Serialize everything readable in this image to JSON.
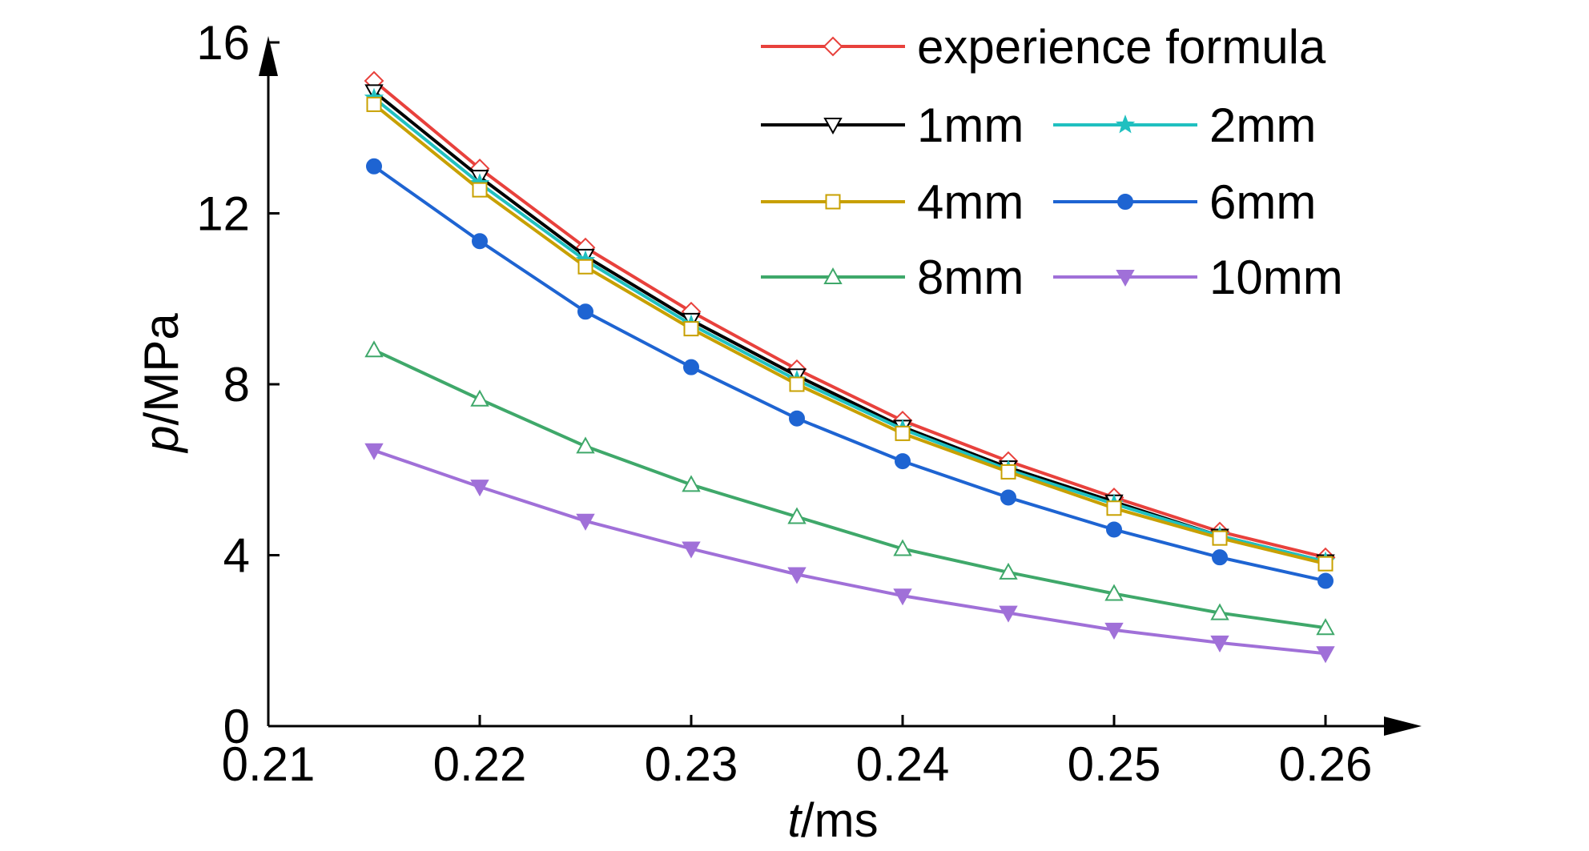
{
  "chart_data": {
    "type": "line",
    "xlabel": {
      "italic": "t",
      "rest": "/ms"
    },
    "ylabel": {
      "italic": "p",
      "rest": "/MPa"
    },
    "xlim": [
      0.21,
      0.265
    ],
    "ylim": [
      0,
      16
    ],
    "xticks": [
      "0.21",
      "0.22",
      "0.23",
      "0.24",
      "0.25",
      "0.26"
    ],
    "yticks": [
      "0",
      "4",
      "8",
      "12",
      "16"
    ],
    "grid": false,
    "legend_placement": "top-right",
    "x": [
      0.215,
      0.22,
      0.225,
      0.23,
      0.235,
      0.24,
      0.245,
      0.25,
      0.255,
      0.26
    ],
    "series": [
      {
        "name": "experience formula",
        "color": "#e8413c",
        "marker": "diamond-open",
        "values": [
          15.1,
          13.05,
          11.2,
          9.7,
          8.35,
          7.15,
          6.2,
          5.35,
          4.55,
          3.95
        ]
      },
      {
        "name": "1mm",
        "color": "#000000",
        "marker": "triangle-down-open",
        "values": [
          14.85,
          12.85,
          11.0,
          9.5,
          8.2,
          7.0,
          6.05,
          5.25,
          4.45,
          3.85
        ]
      },
      {
        "name": "2mm",
        "color": "#20c0c0",
        "marker": "star-filled",
        "values": [
          14.7,
          12.7,
          10.9,
          9.4,
          8.1,
          6.95,
          6.0,
          5.2,
          4.45,
          3.85
        ]
      },
      {
        "name": "4mm",
        "color": "#c8a000",
        "marker": "square-open",
        "values": [
          14.55,
          12.55,
          10.75,
          9.3,
          8.0,
          6.85,
          5.95,
          5.1,
          4.4,
          3.8
        ]
      },
      {
        "name": "6mm",
        "color": "#1e64d2",
        "marker": "circle-filled",
        "values": [
          13.1,
          11.35,
          9.7,
          8.4,
          7.2,
          6.2,
          5.35,
          4.6,
          3.95,
          3.4
        ]
      },
      {
        "name": "8mm",
        "color": "#3fa86a",
        "marker": "triangle-up-open",
        "values": [
          8.8,
          7.65,
          6.55,
          5.65,
          4.9,
          4.15,
          3.6,
          3.1,
          2.65,
          2.3
        ]
      },
      {
        "name": "10mm",
        "color": "#a070d8",
        "marker": "triangle-down-filled",
        "values": [
          6.45,
          5.6,
          4.8,
          4.15,
          3.55,
          3.05,
          2.65,
          2.25,
          1.95,
          1.7
        ]
      }
    ]
  }
}
